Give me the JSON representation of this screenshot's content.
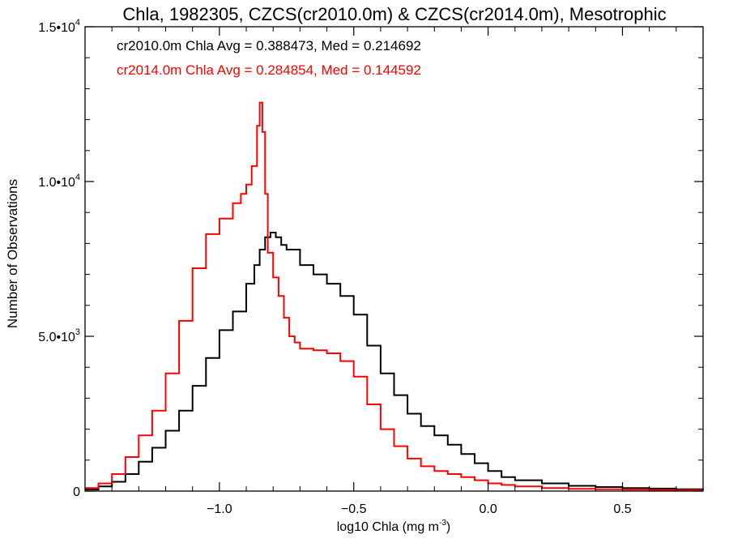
{
  "chart_data": {
    "type": "line",
    "title": "Chla, 1982305, CZCS(cr2010.0m) & CZCS(cr2014.0m), Mesotrophic",
    "xlabel_main": "log10 Chla (mg m",
    "xlabel_sup": "-3",
    "xlabel_tail": ")",
    "ylabel": "Number of Observations",
    "xlim": [
      -1.5,
      0.8
    ],
    "ylim": [
      0,
      15000
    ],
    "grid": false,
    "x_ticks": [
      {
        "value": -1.0,
        "label": "−1.0"
      },
      {
        "value": -0.5,
        "label": "−0.5"
      },
      {
        "value": 0.0,
        "label": "0.0"
      },
      {
        "value": 0.5,
        "label": "0.5"
      }
    ],
    "y_ticks": [
      {
        "value": 0,
        "label": "0",
        "sup": ""
      },
      {
        "value": 5000,
        "label": "5.0•10",
        "sup": "3"
      },
      {
        "value": 10000,
        "label": "1.0•10",
        "sup": "4"
      },
      {
        "value": 15000,
        "label": "1.5•10",
        "sup": "4"
      }
    ],
    "annotations": [
      {
        "text": "cr2010.0m Chla Avg = 0.388473, Med = 0.214692",
        "color": "#000000"
      },
      {
        "text": "cr2014.0m Chla Avg = 0.284854, Med = 0.144592",
        "color": "#ff0000"
      }
    ],
    "series": [
      {
        "color": "#000000",
        "x": [
          -1.5,
          -1.45,
          -1.4,
          -1.35,
          -1.3,
          -1.25,
          -1.2,
          -1.15,
          -1.1,
          -1.05,
          -1.0,
          -0.95,
          -0.9,
          -0.87,
          -0.85,
          -0.83,
          -0.81,
          -0.79,
          -0.77,
          -0.75,
          -0.7,
          -0.65,
          -0.6,
          -0.55,
          -0.5,
          -0.45,
          -0.4,
          -0.35,
          -0.3,
          -0.25,
          -0.2,
          -0.15,
          -0.1,
          -0.05,
          0.0,
          0.05,
          0.1,
          0.2,
          0.3,
          0.4,
          0.5,
          0.6,
          0.7,
          0.8
        ],
        "y": [
          50,
          150,
          300,
          550,
          950,
          1400,
          1950,
          2600,
          3400,
          4300,
          5200,
          5800,
          6700,
          7300,
          7800,
          8200,
          8350,
          8200,
          7950,
          7800,
          7300,
          7000,
          6700,
          6300,
          5700,
          4700,
          3800,
          3100,
          2500,
          2100,
          1800,
          1500,
          1200,
          900,
          650,
          450,
          350,
          250,
          170,
          130,
          100,
          80,
          60,
          50
        ]
      },
      {
        "color": "#ff0000",
        "x": [
          -1.5,
          -1.45,
          -1.4,
          -1.35,
          -1.3,
          -1.25,
          -1.2,
          -1.15,
          -1.1,
          -1.05,
          -1.0,
          -0.95,
          -0.92,
          -0.9,
          -0.88,
          -0.86,
          -0.85,
          -0.84,
          -0.83,
          -0.82,
          -0.8,
          -0.78,
          -0.76,
          -0.74,
          -0.72,
          -0.7,
          -0.65,
          -0.6,
          -0.55,
          -0.5,
          -0.45,
          -0.4,
          -0.35,
          -0.3,
          -0.25,
          -0.2,
          -0.15,
          -0.1,
          -0.05,
          0.0,
          0.05,
          0.1,
          0.2,
          0.3,
          0.4,
          0.5,
          0.6,
          0.7,
          0.8
        ],
        "y": [
          100,
          250,
          550,
          1100,
          1800,
          2600,
          3800,
          5500,
          7200,
          8300,
          8800,
          9300,
          9600,
          9900,
          10500,
          11800,
          12550,
          11600,
          9600,
          7700,
          6900,
          6300,
          5600,
          5000,
          4800,
          4600,
          4550,
          4450,
          4200,
          3700,
          2800,
          2000,
          1450,
          1050,
          800,
          650,
          550,
          450,
          350,
          250,
          200,
          150,
          100,
          70,
          60,
          50,
          40,
          30,
          30
        ]
      }
    ]
  }
}
